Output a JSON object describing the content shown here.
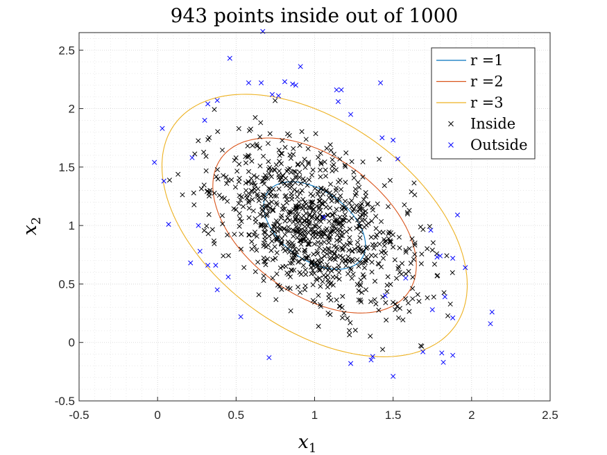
{
  "chart_data": {
    "type": "scatter",
    "title": "943 points inside out of 1000",
    "xlabel": "x",
    "xlabel_sub": "1",
    "ylabel": "x",
    "ylabel_sub": "2",
    "xlim": [
      -0.5,
      2.5
    ],
    "ylim": [
      -0.5,
      2.65
    ],
    "xticks": [
      "-0.5",
      "0",
      "0.5",
      "1",
      "1.5",
      "2",
      "2.5"
    ],
    "yticks": [
      "-0.5",
      "0",
      "0.5",
      "1",
      "1.5",
      "2",
      "2.5"
    ],
    "grid": "on (major and minor, dotted)",
    "legend_location": "top-right",
    "ellipse": {
      "center": [
        1.0,
        1.0
      ],
      "covariance": [
        [
          0.105,
          -0.055
        ],
        [
          -0.055,
          0.14
        ]
      ]
    },
    "series": [
      {
        "name": "r =1",
        "kind": "contour",
        "r": 1,
        "color": "#0072BD"
      },
      {
        "name": "r =2",
        "kind": "contour",
        "r": 2,
        "color": "#D95319"
      },
      {
        "name": "r =3",
        "kind": "contour",
        "r": 3,
        "color": "#EDB120"
      },
      {
        "name": "Inside",
        "kind": "points",
        "marker": "x",
        "color": "#000000",
        "count": 943,
        "note": "dense cloud inside r=3 (approximated)"
      },
      {
        "name": "Outside",
        "kind": "points",
        "marker": "x",
        "color": "#0000FF",
        "count": 57,
        "points": [
          [
            0.67,
            2.66
          ],
          [
            0.46,
            2.43
          ],
          [
            0.91,
            2.36
          ],
          [
            0.58,
            2.22
          ],
          [
            0.66,
            2.22
          ],
          [
            0.81,
            2.23
          ],
          [
            0.86,
            2.21
          ],
          [
            0.88,
            2.2
          ],
          [
            0.73,
            2.12
          ],
          [
            0.77,
            2.11
          ],
          [
            1.42,
            2.22
          ],
          [
            1.14,
            2.16
          ],
          [
            1.17,
            2.16
          ],
          [
            0.32,
            2.04
          ],
          [
            0.38,
            2.07
          ],
          [
            0.03,
            1.83
          ],
          [
            1.15,
            2.06
          ],
          [
            1.23,
            1.95
          ],
          [
            -0.02,
            1.54
          ],
          [
            0.04,
            1.38
          ],
          [
            0.22,
            1.58
          ],
          [
            1.43,
            1.75
          ],
          [
            1.5,
            1.73
          ],
          [
            1.53,
            1.57
          ],
          [
            1.06,
            1.07
          ],
          [
            0.07,
            1.01
          ],
          [
            0.26,
            1.0
          ],
          [
            0.21,
            0.68
          ],
          [
            0.27,
            0.78
          ],
          [
            0.32,
            0.66
          ],
          [
            0.37,
            0.66
          ],
          [
            0.45,
            0.56
          ],
          [
            0.38,
            0.45
          ],
          [
            1.74,
            0.96
          ],
          [
            1.8,
            0.74
          ],
          [
            1.78,
            0.73
          ],
          [
            1.88,
            0.72
          ],
          [
            1.91,
            1.09
          ],
          [
            1.96,
            0.64
          ],
          [
            1.83,
            0.39
          ],
          [
            1.75,
            0.28
          ],
          [
            1.88,
            0.21
          ],
          [
            2.13,
            0.26
          ],
          [
            2.12,
            0.16
          ],
          [
            0.53,
            0.22
          ],
          [
            1.69,
            -0.08
          ],
          [
            1.81,
            -0.09
          ],
          [
            1.82,
            -0.17
          ],
          [
            1.88,
            -0.11
          ],
          [
            0.71,
            -0.13
          ],
          [
            1.23,
            -0.18
          ],
          [
            1.36,
            -0.15
          ],
          [
            1.37,
            -0.12
          ],
          [
            1.5,
            -0.29
          ],
          [
            1.58,
            0.55
          ],
          [
            1.45,
            0.4
          ],
          [
            0.3,
            1.9
          ]
        ]
      }
    ]
  }
}
